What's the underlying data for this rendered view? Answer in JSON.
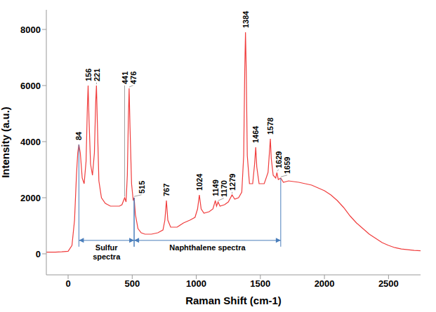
{
  "chart_data": {
    "type": "line",
    "x_label": "Raman Shift (cm-1)",
    "y_label": "Intensity (a.u.)",
    "color": "#f03c3c",
    "grid": false,
    "xlim": [
      -170,
      2750
    ],
    "xticks": [
      0,
      500,
      1000,
      1500,
      2000,
      2500
    ],
    "ylim": [
      -750,
      8700
    ],
    "yticks": [
      0,
      2000,
      4000,
      6000,
      8000
    ],
    "x": [
      -170,
      -100,
      -50,
      0,
      30,
      50,
      65,
      75,
      84,
      95,
      110,
      125,
      140,
      150,
      156,
      163,
      175,
      190,
      205,
      215,
      221,
      228,
      240,
      260,
      290,
      330,
      370,
      400,
      420,
      441,
      452,
      462,
      470,
      476,
      483,
      495,
      508,
      515,
      525,
      545,
      570,
      600,
      650,
      700,
      740,
      755,
      767,
      778,
      800,
      850,
      900,
      950,
      990,
      1010,
      1024,
      1038,
      1060,
      1100,
      1130,
      1149,
      1158,
      1170,
      1185,
      1220,
      1250,
      1279,
      1300,
      1330,
      1355,
      1370,
      1378,
      1384,
      1390,
      1398,
      1415,
      1440,
      1455,
      1464,
      1472,
      1490,
      1530,
      1560,
      1572,
      1578,
      1585,
      1600,
      1620,
      1629,
      1640,
      1659,
      1680,
      1720,
      1800,
      1850,
      1900,
      1950,
      2000,
      2050,
      2100,
      2150,
      2200,
      2250,
      2300,
      2350,
      2400,
      2450,
      2500,
      2550,
      2600,
      2700,
      2750
    ],
    "values": [
      60,
      60,
      70,
      90,
      300,
      1200,
      2800,
      3600,
      3900,
      3600,
      2700,
      2500,
      3300,
      5200,
      6000,
      4800,
      3200,
      2800,
      3600,
      5400,
      6000,
      4700,
      2600,
      2000,
      1800,
      1700,
      1700,
      1700,
      1750,
      2000,
      1850,
      2800,
      4800,
      5900,
      4500,
      2500,
      1900,
      2000,
      1400,
      900,
      750,
      700,
      700,
      750,
      850,
      1200,
      1900,
      1200,
      950,
      950,
      1100,
      1200,
      1300,
      1600,
      2100,
      1600,
      1450,
      1500,
      1600,
      1900,
      1700,
      1850,
      1700,
      1750,
      1850,
      2100,
      1950,
      2000,
      2200,
      3500,
      6500,
      7900,
      6500,
      3500,
      2500,
      2500,
      3200,
      3800,
      3100,
      2500,
      2500,
      2900,
      3700,
      4100,
      3400,
      2800,
      2700,
      2900,
      2650,
      2700,
      2550,
      2600,
      2550,
      2500,
      2450,
      2350,
      2250,
      2100,
      1900,
      1650,
      1350,
      1100,
      900,
      700,
      550,
      400,
      300,
      220,
      170,
      120,
      110
    ],
    "peak_labels": [
      84,
      156,
      221,
      441,
      476,
      515,
      767,
      1024,
      1149,
      1170,
      1279,
      1384,
      1464,
      1578,
      1629,
      1659
    ],
    "annotations": [
      {
        "text": "Sulfur spectra",
        "x_start": 84,
        "x_end": 515
      },
      {
        "text": "Naphthalene spectra",
        "x_start": 515,
        "x_end": 1659
      }
    ]
  }
}
